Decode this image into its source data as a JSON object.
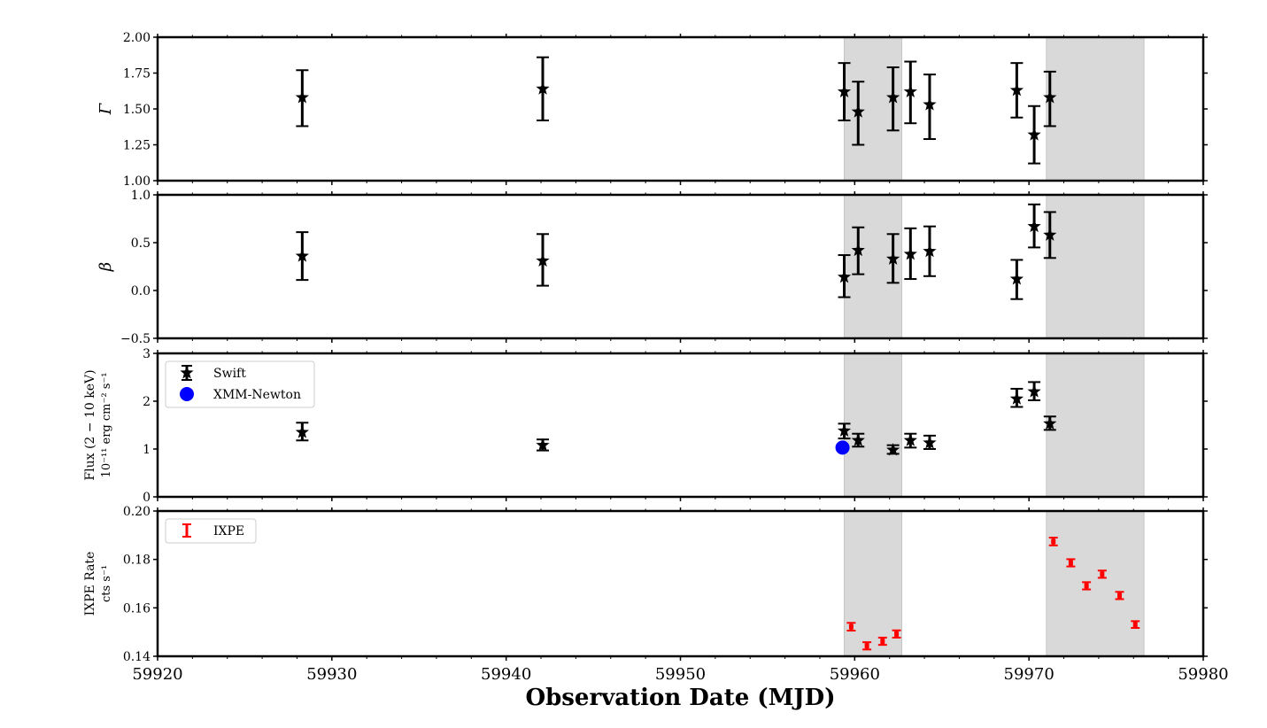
{
  "chart_data": {
    "type": "scatter",
    "xlabel": "Observation Date (MJD)",
    "xlim": [
      59920,
      59980
    ],
    "x_ticks": [
      "59920",
      "59930",
      "59940",
      "59950",
      "59960",
      "59970",
      "59980"
    ],
    "shaded_intervals": [
      [
        59959.4,
        59962.7
      ],
      [
        59971.0,
        59976.6
      ]
    ],
    "colors": {
      "swift": "#000000",
      "xmm": "#0000ff",
      "ixpe": "#ff0000",
      "shade": "#d9d9d9"
    },
    "panels": [
      {
        "id": "gamma",
        "ylabel": "Γ",
        "ylim": [
          1.0,
          2.0
        ],
        "y_ticks": [
          "1.00",
          "1.25",
          "1.50",
          "1.75",
          "2.00"
        ],
        "series": [
          {
            "marker": "star",
            "color_key": "swift",
            "points": [
              {
                "x": 59928.3,
                "y": 1.58,
                "lo": 1.38,
                "hi": 1.77
              },
              {
                "x": 59942.1,
                "y": 1.64,
                "lo": 1.42,
                "hi": 1.86
              },
              {
                "x": 59959.4,
                "y": 1.62,
                "lo": 1.42,
                "hi": 1.82
              },
              {
                "x": 59960.2,
                "y": 1.48,
                "lo": 1.25,
                "hi": 1.69
              },
              {
                "x": 59962.2,
                "y": 1.58,
                "lo": 1.35,
                "hi": 1.79
              },
              {
                "x": 59963.2,
                "y": 1.62,
                "lo": 1.4,
                "hi": 1.83
              },
              {
                "x": 59964.3,
                "y": 1.53,
                "lo": 1.29,
                "hi": 1.74
              },
              {
                "x": 59969.3,
                "y": 1.63,
                "lo": 1.44,
                "hi": 1.82
              },
              {
                "x": 59970.3,
                "y": 1.32,
                "lo": 1.12,
                "hi": 1.52
              },
              {
                "x": 59971.2,
                "y": 1.58,
                "lo": 1.38,
                "hi": 1.76
              }
            ]
          }
        ]
      },
      {
        "id": "beta",
        "ylabel": "β",
        "ylim": [
          -0.5,
          1.0
        ],
        "y_ticks": [
          "−0.5",
          "0.0",
          "0.5",
          "1.0"
        ],
        "series": [
          {
            "marker": "star",
            "color_key": "swift",
            "points": [
              {
                "x": 59928.3,
                "y": 0.36,
                "lo": 0.11,
                "hi": 0.61
              },
              {
                "x": 59942.1,
                "y": 0.31,
                "lo": 0.05,
                "hi": 0.59
              },
              {
                "x": 59959.4,
                "y": 0.14,
                "lo": -0.07,
                "hi": 0.37
              },
              {
                "x": 59960.2,
                "y": 0.42,
                "lo": 0.17,
                "hi": 0.66
              },
              {
                "x": 59962.2,
                "y": 0.33,
                "lo": 0.08,
                "hi": 0.59
              },
              {
                "x": 59963.2,
                "y": 0.38,
                "lo": 0.12,
                "hi": 0.65
              },
              {
                "x": 59964.3,
                "y": 0.41,
                "lo": 0.15,
                "hi": 0.67
              },
              {
                "x": 59969.3,
                "y": 0.12,
                "lo": -0.09,
                "hi": 0.32
              },
              {
                "x": 59970.3,
                "y": 0.67,
                "lo": 0.45,
                "hi": 0.9
              },
              {
                "x": 59971.2,
                "y": 0.58,
                "lo": 0.34,
                "hi": 0.82
              }
            ]
          }
        ]
      },
      {
        "id": "flux",
        "ylabel_line1": "Flux (2 − 10 keV)",
        "ylabel_line2": "10⁻¹¹ erg cm⁻² s⁻¹",
        "ylim": [
          0,
          3
        ],
        "y_ticks": [
          "0",
          "1",
          "2",
          "3"
        ],
        "legend": {
          "location": "upper left",
          "entries": [
            "Swift",
            "XMM-Newton"
          ]
        },
        "series": [
          {
            "name": "Swift",
            "marker": "star",
            "color_key": "swift",
            "points": [
              {
                "x": 59928.3,
                "y": 1.35,
                "lo": 1.18,
                "hi": 1.55
              },
              {
                "x": 59942.1,
                "y": 1.08,
                "lo": 0.97,
                "hi": 1.2
              },
              {
                "x": 59959.4,
                "y": 1.38,
                "lo": 1.22,
                "hi": 1.53
              },
              {
                "x": 59960.2,
                "y": 1.18,
                "lo": 1.05,
                "hi": 1.32
              },
              {
                "x": 59962.2,
                "y": 0.98,
                "lo": 0.9,
                "hi": 1.08
              },
              {
                "x": 59963.2,
                "y": 1.18,
                "lo": 1.03,
                "hi": 1.32
              },
              {
                "x": 59964.3,
                "y": 1.13,
                "lo": 1.0,
                "hi": 1.28
              },
              {
                "x": 59969.3,
                "y": 2.05,
                "lo": 1.88,
                "hi": 2.26
              },
              {
                "x": 59970.3,
                "y": 2.2,
                "lo": 2.02,
                "hi": 2.4
              },
              {
                "x": 59971.2,
                "y": 1.53,
                "lo": 1.4,
                "hi": 1.68
              }
            ]
          },
          {
            "name": "XMM-Newton",
            "marker": "circle",
            "color_key": "xmm",
            "points": [
              {
                "x": 59959.3,
                "y": 1.03,
                "lo": 1.01,
                "hi": 1.05
              }
            ]
          }
        ]
      },
      {
        "id": "ixpe",
        "ylabel_line1": "IXPE Rate",
        "ylabel_line2": "cts s⁻¹",
        "ylim": [
          0.14,
          0.2
        ],
        "y_ticks": [
          "0.14",
          "0.16",
          "0.18",
          "0.20"
        ],
        "legend": {
          "location": "upper left",
          "entries": [
            "IXPE"
          ]
        },
        "series": [
          {
            "name": "IXPE",
            "marker": "errorbar",
            "color_key": "ixpe",
            "points": [
              {
                "x": 59959.8,
                "y": 0.1522,
                "lo": 0.1506,
                "hi": 0.1538
              },
              {
                "x": 59960.7,
                "y": 0.1443,
                "lo": 0.1428,
                "hi": 0.1458
              },
              {
                "x": 59961.6,
                "y": 0.1462,
                "lo": 0.1447,
                "hi": 0.1477
              },
              {
                "x": 59962.4,
                "y": 0.1492,
                "lo": 0.1477,
                "hi": 0.1507
              },
              {
                "x": 59971.4,
                "y": 0.1874,
                "lo": 0.1858,
                "hi": 0.189
              },
              {
                "x": 59972.4,
                "y": 0.1786,
                "lo": 0.1771,
                "hi": 0.1801
              },
              {
                "x": 59973.3,
                "y": 0.1691,
                "lo": 0.1676,
                "hi": 0.1706
              },
              {
                "x": 59974.2,
                "y": 0.1739,
                "lo": 0.1724,
                "hi": 0.1754
              },
              {
                "x": 59975.2,
                "y": 0.1651,
                "lo": 0.1636,
                "hi": 0.1666
              },
              {
                "x": 59976.1,
                "y": 0.1531,
                "lo": 0.1517,
                "hi": 0.1545
              }
            ]
          }
        ]
      }
    ]
  }
}
